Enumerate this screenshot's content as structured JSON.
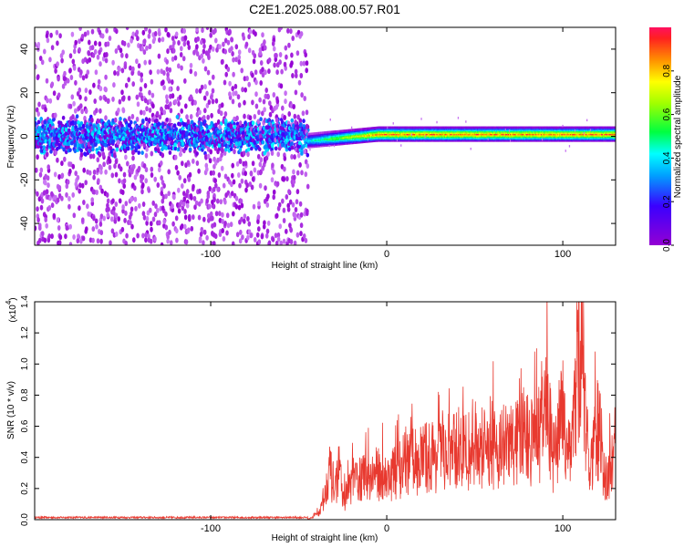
{
  "title": "C2E1.2025.088.00.57.R01",
  "chart_data": [
    {
      "type": "heatmap",
      "xlabel": "Height of straight line (km)",
      "ylabel": "Frequency (Hz)",
      "xlim": [
        -200,
        130
      ],
      "ylim": [
        -50,
        50
      ],
      "x_ticks": [
        -100,
        0,
        100
      ],
      "y_ticks": [
        -40,
        -20,
        0,
        20,
        40
      ],
      "colorbar": {
        "label": "Normalized spectral amplitude",
        "range": [
          0.0,
          1.0
        ],
        "ticks": [
          "0.0",
          "0.2",
          "0.4",
          "0.6",
          "0.8"
        ],
        "tick_values": [
          0.0,
          0.2,
          0.4,
          0.6,
          0.8
        ]
      },
      "regions": [
        {
          "x": [
            -200,
            -45
          ],
          "description_values": {
            "band_center_hz": 0,
            "band_halfwidth_hz": 10,
            "scatter_extent_hz": 50,
            "peak_amplitude": 0.35
          }
        },
        {
          "x": [
            -45,
            130
          ],
          "description_values": {
            "band_center_hz": 1,
            "band_halfwidth_hz": 3,
            "peak_amplitude": 1.0
          }
        }
      ]
    },
    {
      "type": "line",
      "xlabel": "Height of straight line (km)",
      "ylabel": "SNR (10 * v/v)",
      "y_multiplier": "(x10",
      "y_multiplier_exp": "4",
      "xlim": [
        -200,
        130
      ],
      "ylim": [
        0,
        1.4
      ],
      "x_ticks": [
        -100,
        0,
        100
      ],
      "y_ticks": [
        "0.0",
        "0.2",
        "0.4",
        "0.6",
        "0.8",
        "1.0",
        "1.2",
        "1.4"
      ],
      "y_tick_values": [
        0.0,
        0.2,
        0.4,
        0.6,
        0.8,
        1.0,
        1.2,
        1.4
      ],
      "series_color": "#e8392f",
      "x": [
        -200,
        -150,
        -100,
        -60,
        -43,
        -38,
        -35,
        -33,
        -30,
        -27,
        -25,
        -22,
        -20,
        -15,
        -10,
        -5,
        0,
        5,
        10,
        20,
        30,
        40,
        50,
        60,
        70,
        80,
        85,
        90,
        95,
        100,
        105,
        110,
        115,
        120,
        125,
        130
      ],
      "y": [
        0.01,
        0.01,
        0.01,
        0.01,
        0.01,
        0.06,
        0.18,
        0.4,
        0.22,
        0.35,
        0.14,
        0.2,
        0.28,
        0.3,
        0.32,
        0.34,
        0.3,
        0.35,
        0.4,
        0.45,
        0.48,
        0.5,
        0.5,
        0.52,
        0.55,
        0.6,
        0.55,
        0.85,
        0.45,
        0.75,
        0.5,
        1.42,
        0.3,
        0.7,
        0.25,
        0.55
      ]
    }
  ]
}
